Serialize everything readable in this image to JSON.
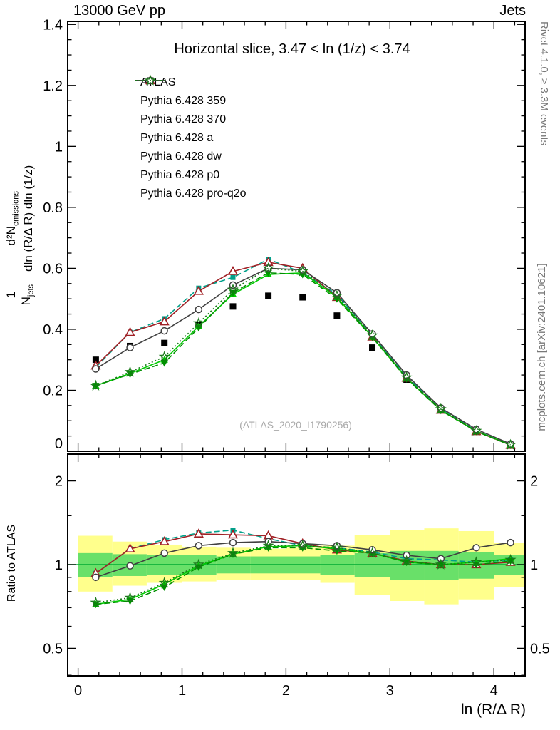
{
  "header": {
    "left": "13000 GeV pp",
    "right": "Jets"
  },
  "title": "Horizontal slice, 3.47 < ln (1/z) < 3.74",
  "watermark": "(ATLAS_2020_I1790256)",
  "right_margin": {
    "top": "Rivet 4.1.0, ≥ 3.3M events",
    "bottom": "mcplots.cern.ch [arXiv:2401.10621]"
  },
  "axes": {
    "x_label": "ln (R/Δ R)",
    "y_label_bottom": "Ratio to ATLAS",
    "y_label_top_parts": {
      "f1num": "1",
      "f1den": "N",
      "f1den_sub": "jets",
      "f2num": "d²N",
      "f2num_sub": "emissions",
      "f2den": "dln (R/Δ R) dln (1/z)"
    },
    "x_ticks": [
      0,
      1,
      2,
      3,
      4
    ],
    "x_tick_labels": [
      "0",
      "1",
      "2",
      "3",
      "4"
    ],
    "x_minor_step": 0.2,
    "top_y_ticks": [
      0,
      0.2,
      0.4,
      0.6,
      0.8,
      1,
      1.2,
      1.4
    ],
    "top_y_tick_labels": [
      "0",
      "0.2",
      "0.4",
      "0.6",
      "0.8",
      "1",
      "1.2",
      "1.4"
    ],
    "top_y_minor_step": 0.05,
    "ratio_ticks": [
      0.5,
      1,
      2
    ],
    "ratio_tick_labels": [
      "0.5",
      "1",
      "2"
    ],
    "ratio_minor_ticks": [
      0.4,
      0.6,
      0.7,
      0.8,
      0.9,
      1.5
    ]
  },
  "chart_data": {
    "type": "line",
    "title": "Horizontal slice, 3.47 < ln (1/z) < 3.74",
    "xlabel": "ln (R/Δ R)",
    "ylabel": "1/N_jets d²N_emissions / dln (R/Δ R) dln (1/z)",
    "ratio_ylabel": "Ratio to ATLAS",
    "x_range": [
      -0.1,
      4.3
    ],
    "top_y_range": [
      0,
      1.41
    ],
    "ratio_y_range": [
      0.4,
      2.5
    ],
    "ratio_scale": "log",
    "ref_line_color": "#00aa33",
    "x": [
      0.17,
      0.5,
      0.83,
      1.16,
      1.49,
      1.83,
      2.16,
      2.49,
      2.83,
      3.16,
      3.49,
      3.83,
      4.16
    ],
    "series": [
      {
        "name": "ATLAS",
        "color": "#000000",
        "line": "none",
        "marker": "square",
        "values": [
          0.3,
          0.345,
          0.355,
          0.415,
          0.475,
          0.51,
          0.505,
          0.445,
          0.34,
          0.235,
          0.135,
          0.065,
          0.02
        ],
        "ratio": null
      },
      {
        "name": "Pythia 6.428 359",
        "color": "#00A08A",
        "line": "dashed",
        "marker": "square-sm",
        "values": [
          0.275,
          0.39,
          0.435,
          0.535,
          0.57,
          0.63,
          0.585,
          0.515,
          0.38,
          0.245,
          0.14,
          0.067,
          0.021
        ],
        "ratio": [
          0.93,
          1.14,
          1.23,
          1.3,
          1.33,
          1.24,
          1.17,
          1.15,
          1.11,
          1.05,
          1.04,
          1.02,
          1.04
        ]
      },
      {
        "name": "Pythia 6.428 370",
        "color": "#A02025",
        "line": "solid",
        "marker": "tri-open",
        "values": [
          0.28,
          0.39,
          0.425,
          0.525,
          0.59,
          0.62,
          0.6,
          0.505,
          0.375,
          0.24,
          0.135,
          0.065,
          0.02
        ],
        "ratio": [
          0.93,
          1.14,
          1.21,
          1.29,
          1.28,
          1.27,
          1.19,
          1.13,
          1.1,
          1.03,
          1.0,
          1.0,
          1.02
        ]
      },
      {
        "name": "Pythia 6.428 a",
        "color": "#00CC00",
        "line": "solid",
        "marker": "tri-fill",
        "values": [
          0.215,
          0.255,
          0.3,
          0.41,
          0.515,
          0.58,
          0.585,
          0.505,
          0.375,
          0.24,
          0.135,
          0.066,
          0.021
        ],
        "ratio": [
          0.72,
          0.75,
          0.85,
          0.99,
          1.09,
          1.16,
          1.17,
          1.14,
          1.1,
          1.02,
          1.0,
          1.02,
          1.05
        ]
      },
      {
        "name": "Pythia 6.428 dw",
        "color": "#008F00",
        "line": "dashed",
        "marker": "tri-down",
        "values": [
          0.215,
          0.253,
          0.29,
          0.405,
          0.52,
          0.585,
          0.58,
          0.5,
          0.374,
          0.238,
          0.134,
          0.065,
          0.02
        ],
        "ratio": [
          0.72,
          0.74,
          0.83,
          0.98,
          1.09,
          1.15,
          1.15,
          1.12,
          1.1,
          1.02,
          1.0,
          1.0,
          1.03
        ]
      },
      {
        "name": "Pythia 6.428 p0",
        "color": "#404040",
        "line": "solid",
        "marker": "circle",
        "values": [
          0.27,
          0.34,
          0.395,
          0.465,
          0.545,
          0.6,
          0.595,
          0.52,
          0.385,
          0.25,
          0.142,
          0.072,
          0.024
        ],
        "ratio": [
          0.9,
          0.99,
          1.1,
          1.17,
          1.2,
          1.21,
          1.19,
          1.17,
          1.13,
          1.08,
          1.05,
          1.15,
          1.2
        ]
      },
      {
        "name": "Pythia 6.428 pro-q2o",
        "color": "#1A7A1A",
        "line": "dotted",
        "marker": "star",
        "values": [
          0.215,
          0.26,
          0.31,
          0.42,
          0.53,
          0.6,
          0.59,
          0.51,
          0.38,
          0.242,
          0.138,
          0.067,
          0.021
        ],
        "ratio": [
          0.73,
          0.76,
          0.86,
          1.0,
          1.1,
          1.17,
          1.17,
          1.15,
          1.1,
          1.03,
          1.0,
          1.02,
          1.04
        ]
      }
    ],
    "bands": {
      "colors": {
        "yellow": "#FFFF8C",
        "green": "#69E069"
      },
      "bin_edges": [
        0,
        0.33,
        0.66,
        1.0,
        1.33,
        1.66,
        2.0,
        2.33,
        2.66,
        3.0,
        3.33,
        3.66,
        4.0,
        4.33
      ],
      "yellow": [
        [
          0.8,
          1.27
        ],
        [
          0.84,
          1.21
        ],
        [
          0.86,
          1.18
        ],
        [
          0.87,
          1.16
        ],
        [
          0.88,
          1.15
        ],
        [
          0.88,
          1.14
        ],
        [
          0.88,
          1.15
        ],
        [
          0.86,
          1.17
        ],
        [
          0.78,
          1.28
        ],
        [
          0.74,
          1.33
        ],
        [
          0.72,
          1.35
        ],
        [
          0.75,
          1.32
        ],
        [
          0.83,
          1.2
        ]
      ],
      "green": [
        [
          0.9,
          1.1
        ],
        [
          0.91,
          1.09
        ],
        [
          0.92,
          1.08
        ],
        [
          0.92,
          1.08
        ],
        [
          0.93,
          1.07
        ],
        [
          0.93,
          1.07
        ],
        [
          0.93,
          1.07
        ],
        [
          0.92,
          1.08
        ],
        [
          0.9,
          1.1
        ],
        [
          0.88,
          1.12
        ],
        [
          0.88,
          1.12
        ],
        [
          0.89,
          1.11
        ],
        [
          0.92,
          1.08
        ]
      ]
    }
  }
}
